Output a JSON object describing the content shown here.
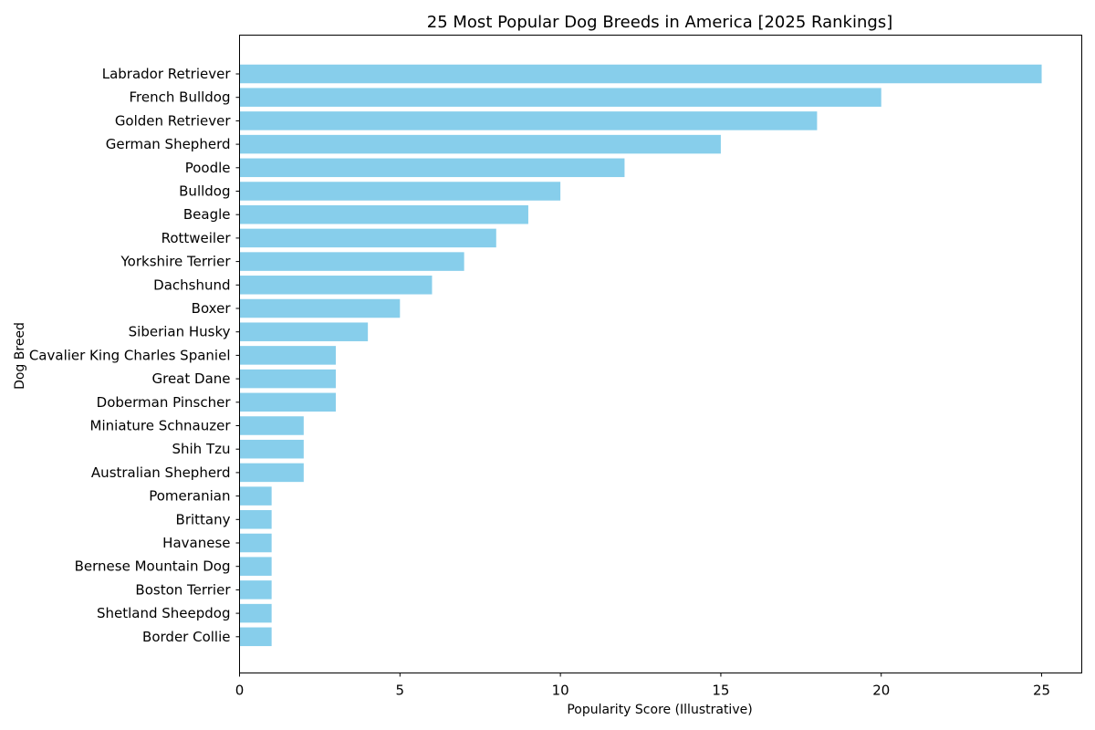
{
  "chart_data": {
    "type": "bar",
    "orientation": "horizontal",
    "title": "25 Most Popular Dog Breeds in America [2025 Rankings]",
    "xlabel": "Popularity Score (Illustrative)",
    "ylabel": "Dog Breed",
    "xlim": [
      0,
      26.25
    ],
    "xticks": [
      0,
      5,
      10,
      15,
      20,
      25
    ],
    "grid": false,
    "bar_color": "#87ceeb",
    "categories": [
      "Labrador Retriever",
      "French Bulldog",
      "Golden Retriever",
      "German Shepherd",
      "Poodle",
      "Bulldog",
      "Beagle",
      "Rottweiler",
      "Yorkshire Terrier",
      "Dachshund",
      "Boxer",
      "Siberian Husky",
      "Cavalier King Charles Spaniel",
      "Great Dane",
      "Doberman Pinscher",
      "Miniature Schnauzer",
      "Shih Tzu",
      "Australian Shepherd",
      "Pomeranian",
      "Brittany",
      "Havanese",
      "Bernese Mountain Dog",
      "Boston Terrier",
      "Shetland Sheepdog",
      "Border Collie"
    ],
    "values": [
      25,
      20,
      18,
      15,
      12,
      10,
      9,
      8,
      7,
      6,
      5,
      4,
      3,
      3,
      3,
      2,
      2,
      2,
      1,
      1,
      1,
      1,
      1,
      1,
      1
    ]
  }
}
